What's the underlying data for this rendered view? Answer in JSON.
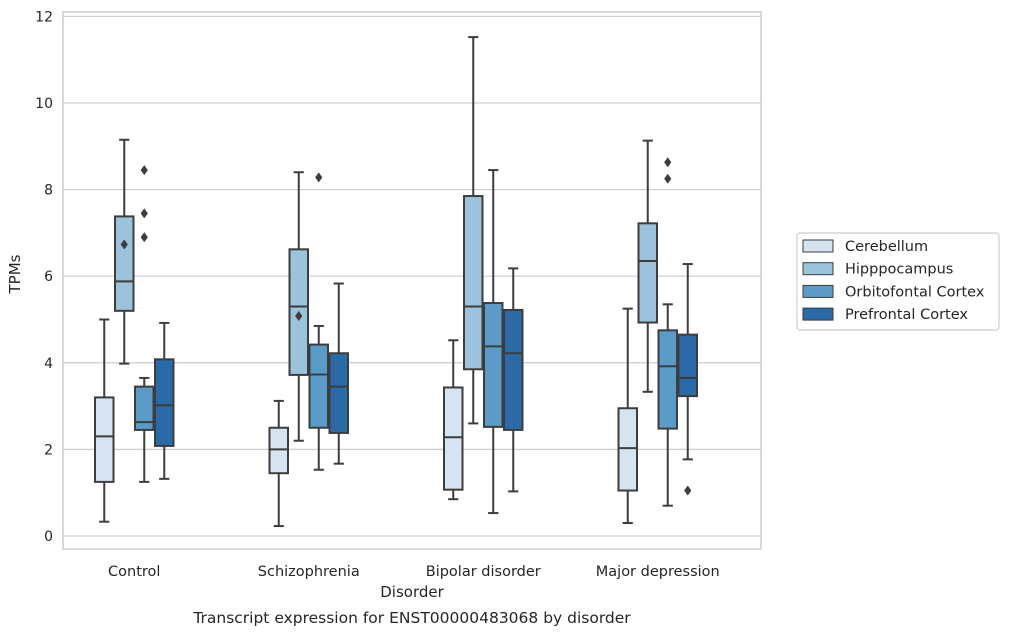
{
  "chart_data": {
    "type": "box",
    "title": "",
    "caption": "Transcript expression for ENST00000483068 by disorder",
    "xlabel": "Disorder",
    "ylabel": "TPMs",
    "ylim": [
      -0.3,
      12.1
    ],
    "yticks": [
      0,
      2,
      4,
      6,
      8,
      10,
      12
    ],
    "grid": "horizontal",
    "legend_position": "right",
    "categories": [
      "Control",
      "Schizophrenia",
      "Bipolar disorder",
      "Major depression"
    ],
    "series": [
      {
        "name": "Cerebellum",
        "color": "#d6e4f2",
        "boxes": [
          {
            "whisker_low": 0.33,
            "q1": 1.25,
            "median": 2.3,
            "q3": 3.2,
            "whisker_high": 5.0,
            "outliers": []
          },
          {
            "whisker_low": 0.23,
            "q1": 1.45,
            "median": 2.0,
            "q3": 2.5,
            "whisker_high": 3.12,
            "outliers": []
          },
          {
            "whisker_low": 0.85,
            "q1": 1.07,
            "median": 2.28,
            "q3": 3.43,
            "whisker_high": 4.52,
            "outliers": []
          },
          {
            "whisker_low": 0.3,
            "q1": 1.05,
            "median": 2.03,
            "q3": 2.95,
            "whisker_high": 5.25,
            "outliers": []
          }
        ]
      },
      {
        "name": "Hipppocampus",
        "color": "#9cc3dc",
        "boxes": [
          {
            "whisker_low": 3.98,
            "q1": 5.2,
            "median": 5.88,
            "q3": 7.38,
            "whisker_high": 9.15,
            "outliers": [
              6.73
            ]
          },
          {
            "whisker_low": 2.2,
            "q1": 3.72,
            "median": 5.3,
            "q3": 6.62,
            "whisker_high": 8.4,
            "outliers": [
              5.08
            ]
          },
          {
            "whisker_low": 2.6,
            "q1": 3.85,
            "median": 5.3,
            "q3": 7.85,
            "whisker_high": 11.52,
            "outliers": []
          },
          {
            "whisker_low": 3.33,
            "q1": 4.93,
            "median": 6.35,
            "q3": 7.22,
            "whisker_high": 9.13,
            "outliers": []
          }
        ]
      },
      {
        "name": "Orbitofontal Cortex",
        "color": "#5a9cc7",
        "boxes": [
          {
            "whisker_low": 1.25,
            "q1": 2.45,
            "median": 2.63,
            "q3": 3.45,
            "whisker_high": 3.65,
            "outliers": [
              8.45,
              7.45,
              6.9
            ]
          },
          {
            "whisker_low": 1.53,
            "q1": 2.5,
            "median": 3.73,
            "q3": 4.42,
            "whisker_high": 4.85,
            "outliers": [
              8.28
            ]
          },
          {
            "whisker_low": 0.53,
            "q1": 2.52,
            "median": 4.38,
            "q3": 5.38,
            "whisker_high": 8.45,
            "outliers": []
          },
          {
            "whisker_low": 0.7,
            "q1": 2.48,
            "median": 3.92,
            "q3": 4.75,
            "whisker_high": 5.35,
            "outliers": [
              8.63,
              8.25
            ]
          }
        ]
      },
      {
        "name": "Prefrontal Cortex",
        "color": "#2b6aa8",
        "boxes": [
          {
            "whisker_low": 1.32,
            "q1": 2.08,
            "median": 3.02,
            "q3": 4.08,
            "whisker_high": 4.92,
            "outliers": []
          },
          {
            "whisker_low": 1.67,
            "q1": 2.38,
            "median": 3.45,
            "q3": 4.22,
            "whisker_high": 5.83,
            "outliers": []
          },
          {
            "whisker_low": 1.03,
            "q1": 2.45,
            "median": 4.22,
            "q3": 5.22,
            "whisker_high": 6.18,
            "outliers": []
          },
          {
            "whisker_low": 1.77,
            "q1": 3.23,
            "median": 3.65,
            "q3": 4.65,
            "whisker_high": 6.28,
            "outliers": [
              1.05
            ]
          }
        ]
      }
    ]
  }
}
